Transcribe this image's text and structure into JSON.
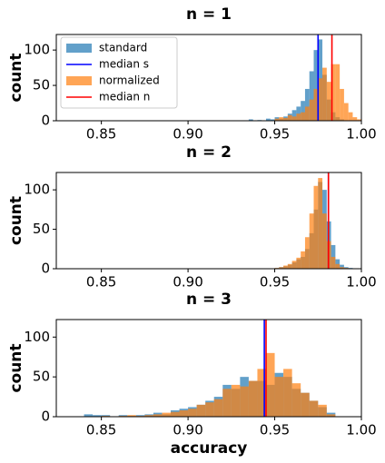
{
  "chart_data": [
    {
      "type": "histogram",
      "title": "n = 1",
      "y_label": "count",
      "xlim": [
        0.824,
        1.0
      ],
      "ylim": [
        0,
        122
      ],
      "xticks": [
        0.85,
        {
          "value": 0.9,
          "label": "0.90"
        },
        0.95,
        {
          "value": 1.0,
          "label": "1.00"
        }
      ],
      "yticks": [
        0,
        50,
        100
      ],
      "legend": "upper left",
      "series": [
        {
          "name": "standard",
          "color": "#1f77b4",
          "bins": [
            0.935,
            0.9375,
            0.94,
            0.9425,
            0.945,
            0.9475,
            0.95,
            0.9525,
            0.955,
            0.9575,
            0.96,
            0.9625,
            0.965,
            0.9675,
            0.97,
            0.9725,
            0.975,
            0.9775,
            0.98,
            0.9825,
            0.985,
            0.9875,
            0.99
          ],
          "values": [
            2,
            0,
            1,
            0,
            3,
            2,
            5,
            3,
            6,
            10,
            15,
            20,
            28,
            45,
            70,
            100,
            115,
            65,
            30,
            12,
            5,
            2
          ]
        },
        {
          "name": "normalized",
          "color": "#ff7f0e",
          "bins": [
            0.95,
            0.9525,
            0.955,
            0.9575,
            0.96,
            0.9625,
            0.965,
            0.9675,
            0.97,
            0.9725,
            0.975,
            0.9775,
            0.98,
            0.9825,
            0.985,
            0.9875,
            0.99,
            0.9925,
            0.995,
            0.9975,
            1.0
          ],
          "values": [
            3,
            5,
            4,
            8,
            6,
            10,
            12,
            20,
            30,
            45,
            60,
            75,
            55,
            80,
            80,
            45,
            25,
            12,
            5,
            2
          ]
        }
      ],
      "medians": [
        {
          "name": "median s",
          "color": "#0000ff",
          "value": 0.975
        },
        {
          "name": "median n",
          "color": "#ff0000",
          "value": 0.983
        }
      ]
    },
    {
      "type": "histogram",
      "title": "n = 2",
      "y_label": "count",
      "xlim": [
        0.824,
        1.0
      ],
      "ylim": [
        0,
        122
      ],
      "xticks": [
        0.85,
        {
          "value": 0.9,
          "label": "0.90"
        },
        0.95,
        {
          "value": 1.0,
          "label": "1.00"
        }
      ],
      "yticks": [
        0,
        50,
        100
      ],
      "series": [
        {
          "color": "#1f77b4",
          "bins": [
            0.95,
            0.9525,
            0.955,
            0.9575,
            0.96,
            0.9625,
            0.965,
            0.9675,
            0.97,
            0.9725,
            0.975,
            0.9775,
            0.98,
            0.9825,
            0.985,
            0.9875,
            0.99,
            0.9925,
            0.995
          ],
          "values": [
            1,
            2,
            3,
            5,
            8,
            12,
            15,
            25,
            45,
            75,
            110,
            100,
            60,
            30,
            12,
            5,
            2,
            1
          ]
        },
        {
          "color": "#ff7f0e",
          "bins": [
            0.95,
            0.9525,
            0.955,
            0.9575,
            0.96,
            0.9625,
            0.965,
            0.9675,
            0.97,
            0.9725,
            0.975,
            0.9775,
            0.98,
            0.9825,
            0.985,
            0.9875,
            0.99,
            0.9925,
            0.995
          ],
          "values": [
            1,
            2,
            4,
            6,
            10,
            14,
            22,
            40,
            70,
            105,
            115,
            70,
            35,
            15,
            6,
            2,
            1,
            0
          ]
        }
      ],
      "medians": [
        {
          "color": "#0000ff",
          "value": 0.981
        },
        {
          "color": "#ff0000",
          "value": 0.981
        }
      ]
    },
    {
      "type": "histogram",
      "title": "n = 3",
      "y_label": "count",
      "x_label": "accuracy",
      "xlim": [
        0.824,
        1.0
      ],
      "ylim": [
        0,
        122
      ],
      "xticks": [
        0.85,
        {
          "value": 0.9,
          "label": "0.90"
        },
        0.95,
        {
          "value": 1.0,
          "label": "1.00"
        }
      ],
      "yticks": [
        0,
        50,
        100
      ],
      "series": [
        {
          "color": "#1f77b4",
          "bins": [
            0.84,
            0.845,
            0.85,
            0.855,
            0.86,
            0.865,
            0.87,
            0.875,
            0.88,
            0.885,
            0.89,
            0.895,
            0.9,
            0.905,
            0.91,
            0.915,
            0.92,
            0.925,
            0.93,
            0.935,
            0.94,
            0.945,
            0.95,
            0.955,
            0.96,
            0.965,
            0.97,
            0.975,
            0.98,
            0.985
          ],
          "values": [
            3,
            2,
            2,
            0,
            2,
            1,
            2,
            3,
            5,
            3,
            8,
            10,
            12,
            15,
            20,
            25,
            40,
            35,
            50,
            45,
            45,
            40,
            55,
            50,
            35,
            30,
            20,
            12,
            5
          ]
        },
        {
          "color": "#ff7f0e",
          "bins": [
            0.84,
            0.845,
            0.85,
            0.855,
            0.86,
            0.865,
            0.87,
            0.875,
            0.88,
            0.885,
            0.89,
            0.895,
            0.9,
            0.905,
            0.91,
            0.915,
            0.92,
            0.925,
            0.93,
            0.935,
            0.94,
            0.945,
            0.95,
            0.955,
            0.96,
            0.965,
            0.97,
            0.975,
            0.98,
            0.985
          ],
          "values": [
            0,
            0,
            1,
            0,
            1,
            2,
            1,
            2,
            3,
            5,
            6,
            8,
            10,
            15,
            18,
            22,
            35,
            40,
            38,
            45,
            60,
            80,
            50,
            60,
            42,
            30,
            20,
            15,
            3
          ]
        }
      ],
      "medians": [
        {
          "color": "#0000ff",
          "value": 0.944
        },
        {
          "color": "#ff0000",
          "value": 0.945
        }
      ]
    }
  ]
}
